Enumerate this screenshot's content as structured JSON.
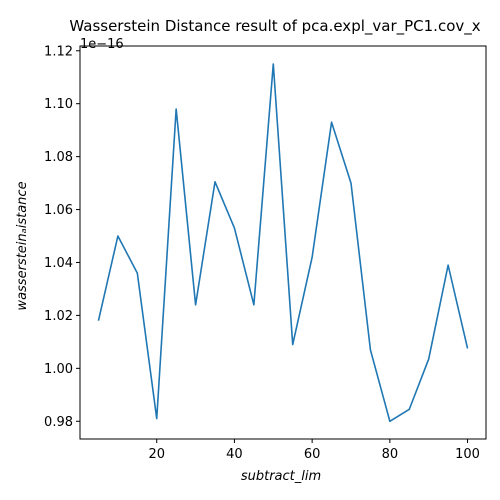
{
  "chart_data": {
    "type": "line",
    "title": "Wasserstein Distance result of pca.expl_var_PC1.cov_x",
    "xlabel": "subtract_lim",
    "ylabel": "wasserstein_distance",
    "ylabel_display": "wassersteinₐistance",
    "y_offset_label": "1e−16",
    "x": [
      5,
      10,
      15,
      20,
      25,
      30,
      35,
      40,
      45,
      50,
      55,
      60,
      65,
      70,
      75,
      80,
      85,
      90,
      95,
      100
    ],
    "series": [
      {
        "values": [
          1.018,
          1.05,
          1.036,
          0.981,
          1.098,
          1.024,
          1.0705,
          1.053,
          1.024,
          1.115,
          1.009,
          1.042,
          1.093,
          1.07,
          1.007,
          0.98,
          0.9845,
          1.0035,
          1.039,
          1.0075
        ],
        "color": "#1f77b4"
      }
    ],
    "xlim": [
      0.25,
      104.75
    ],
    "ylim": [
      0.9733,
      1.1218
    ],
    "x_ticks": [
      "20",
      "40",
      "60",
      "80",
      "100"
    ],
    "x_tick_values": [
      20,
      40,
      60,
      80,
      100
    ],
    "y_ticks": [
      "0.98",
      "1.00",
      "1.02",
      "1.04",
      "1.06",
      "1.08",
      "1.10",
      "1.12"
    ],
    "y_tick_values": [
      0.98,
      1.0,
      1.02,
      1.04,
      1.06,
      1.08,
      1.1,
      1.12
    ],
    "grid": false,
    "legend": "none"
  }
}
